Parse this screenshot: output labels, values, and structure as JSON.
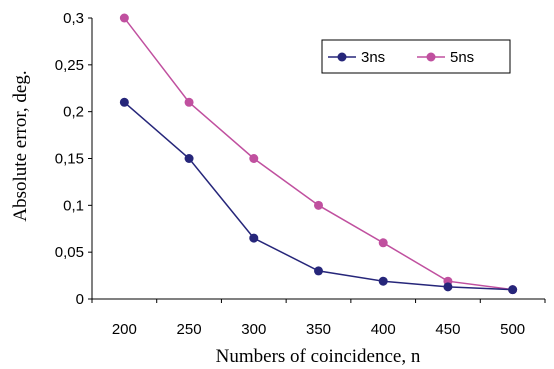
{
  "chart_data": {
    "type": "line",
    "xlabel": "Numbers of coincidence, n",
    "ylabel": "Absolute error, deg.",
    "x": [
      200,
      250,
      300,
      350,
      400,
      450,
      500
    ],
    "x_ticks": [
      "200",
      "250",
      "300",
      "350",
      "400",
      "450",
      "500"
    ],
    "y_ticks": [
      "0",
      "0,05",
      "0,1",
      "0,15",
      "0,2",
      "0,25",
      "0,3"
    ],
    "ylim": [
      0,
      0.3
    ],
    "grid": false,
    "legend_position": "top-right",
    "series": [
      {
        "name": "3ns",
        "color": "#26267a",
        "values": [
          0.21,
          0.15,
          0.065,
          0.03,
          0.019,
          0.013,
          0.01
        ]
      },
      {
        "name": "5ns",
        "color": "#c0509f",
        "values": [
          0.3,
          0.21,
          0.15,
          0.1,
          0.06,
          0.019,
          0.01
        ]
      }
    ]
  }
}
